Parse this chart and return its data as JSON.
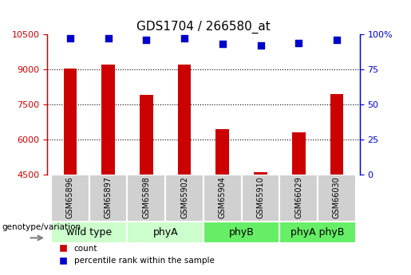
{
  "title": "GDS1704 / 266580_at",
  "samples": [
    "GSM65896",
    "GSM65897",
    "GSM65898",
    "GSM65902",
    "GSM65904",
    "GSM65910",
    "GSM66029",
    "GSM66030"
  ],
  "counts": [
    9050,
    9200,
    7900,
    9200,
    6450,
    4620,
    6300,
    7950
  ],
  "percentiles": [
    97,
    97,
    96,
    97,
    93,
    92,
    94,
    96
  ],
  "groups": [
    {
      "label": "wild type",
      "samples": [
        "GSM65896",
        "GSM65897"
      ],
      "color": "#ccffcc"
    },
    {
      "label": "phyA",
      "samples": [
        "GSM65898",
        "GSM65902"
      ],
      "color": "#ccffcc"
    },
    {
      "label": "phyB",
      "samples": [
        "GSM65904",
        "GSM65910"
      ],
      "color": "#66ee66"
    },
    {
      "label": "phyA phyB",
      "samples": [
        "GSM66029",
        "GSM66030"
      ],
      "color": "#66ee66"
    }
  ],
  "bar_color": "#cc0000",
  "dot_color": "#0000cc",
  "ylim_left": [
    4500,
    10500
  ],
  "yticks_left": [
    4500,
    6000,
    7500,
    9000,
    10500
  ],
  "ylim_right": [
    0,
    100
  ],
  "yticks_right": [
    0,
    25,
    50,
    75,
    100
  ],
  "bar_width": 0.35,
  "dot_size": 40,
  "grid_color": "#000000",
  "legend_count_label": "count",
  "legend_pct_label": "percentile rank within the sample",
  "genotype_label": "genotype/variation",
  "title_fontsize": 11,
  "tick_fontsize": 8,
  "group_label_fontsize": 9,
  "sample_cell_color": "#d0d0d0"
}
